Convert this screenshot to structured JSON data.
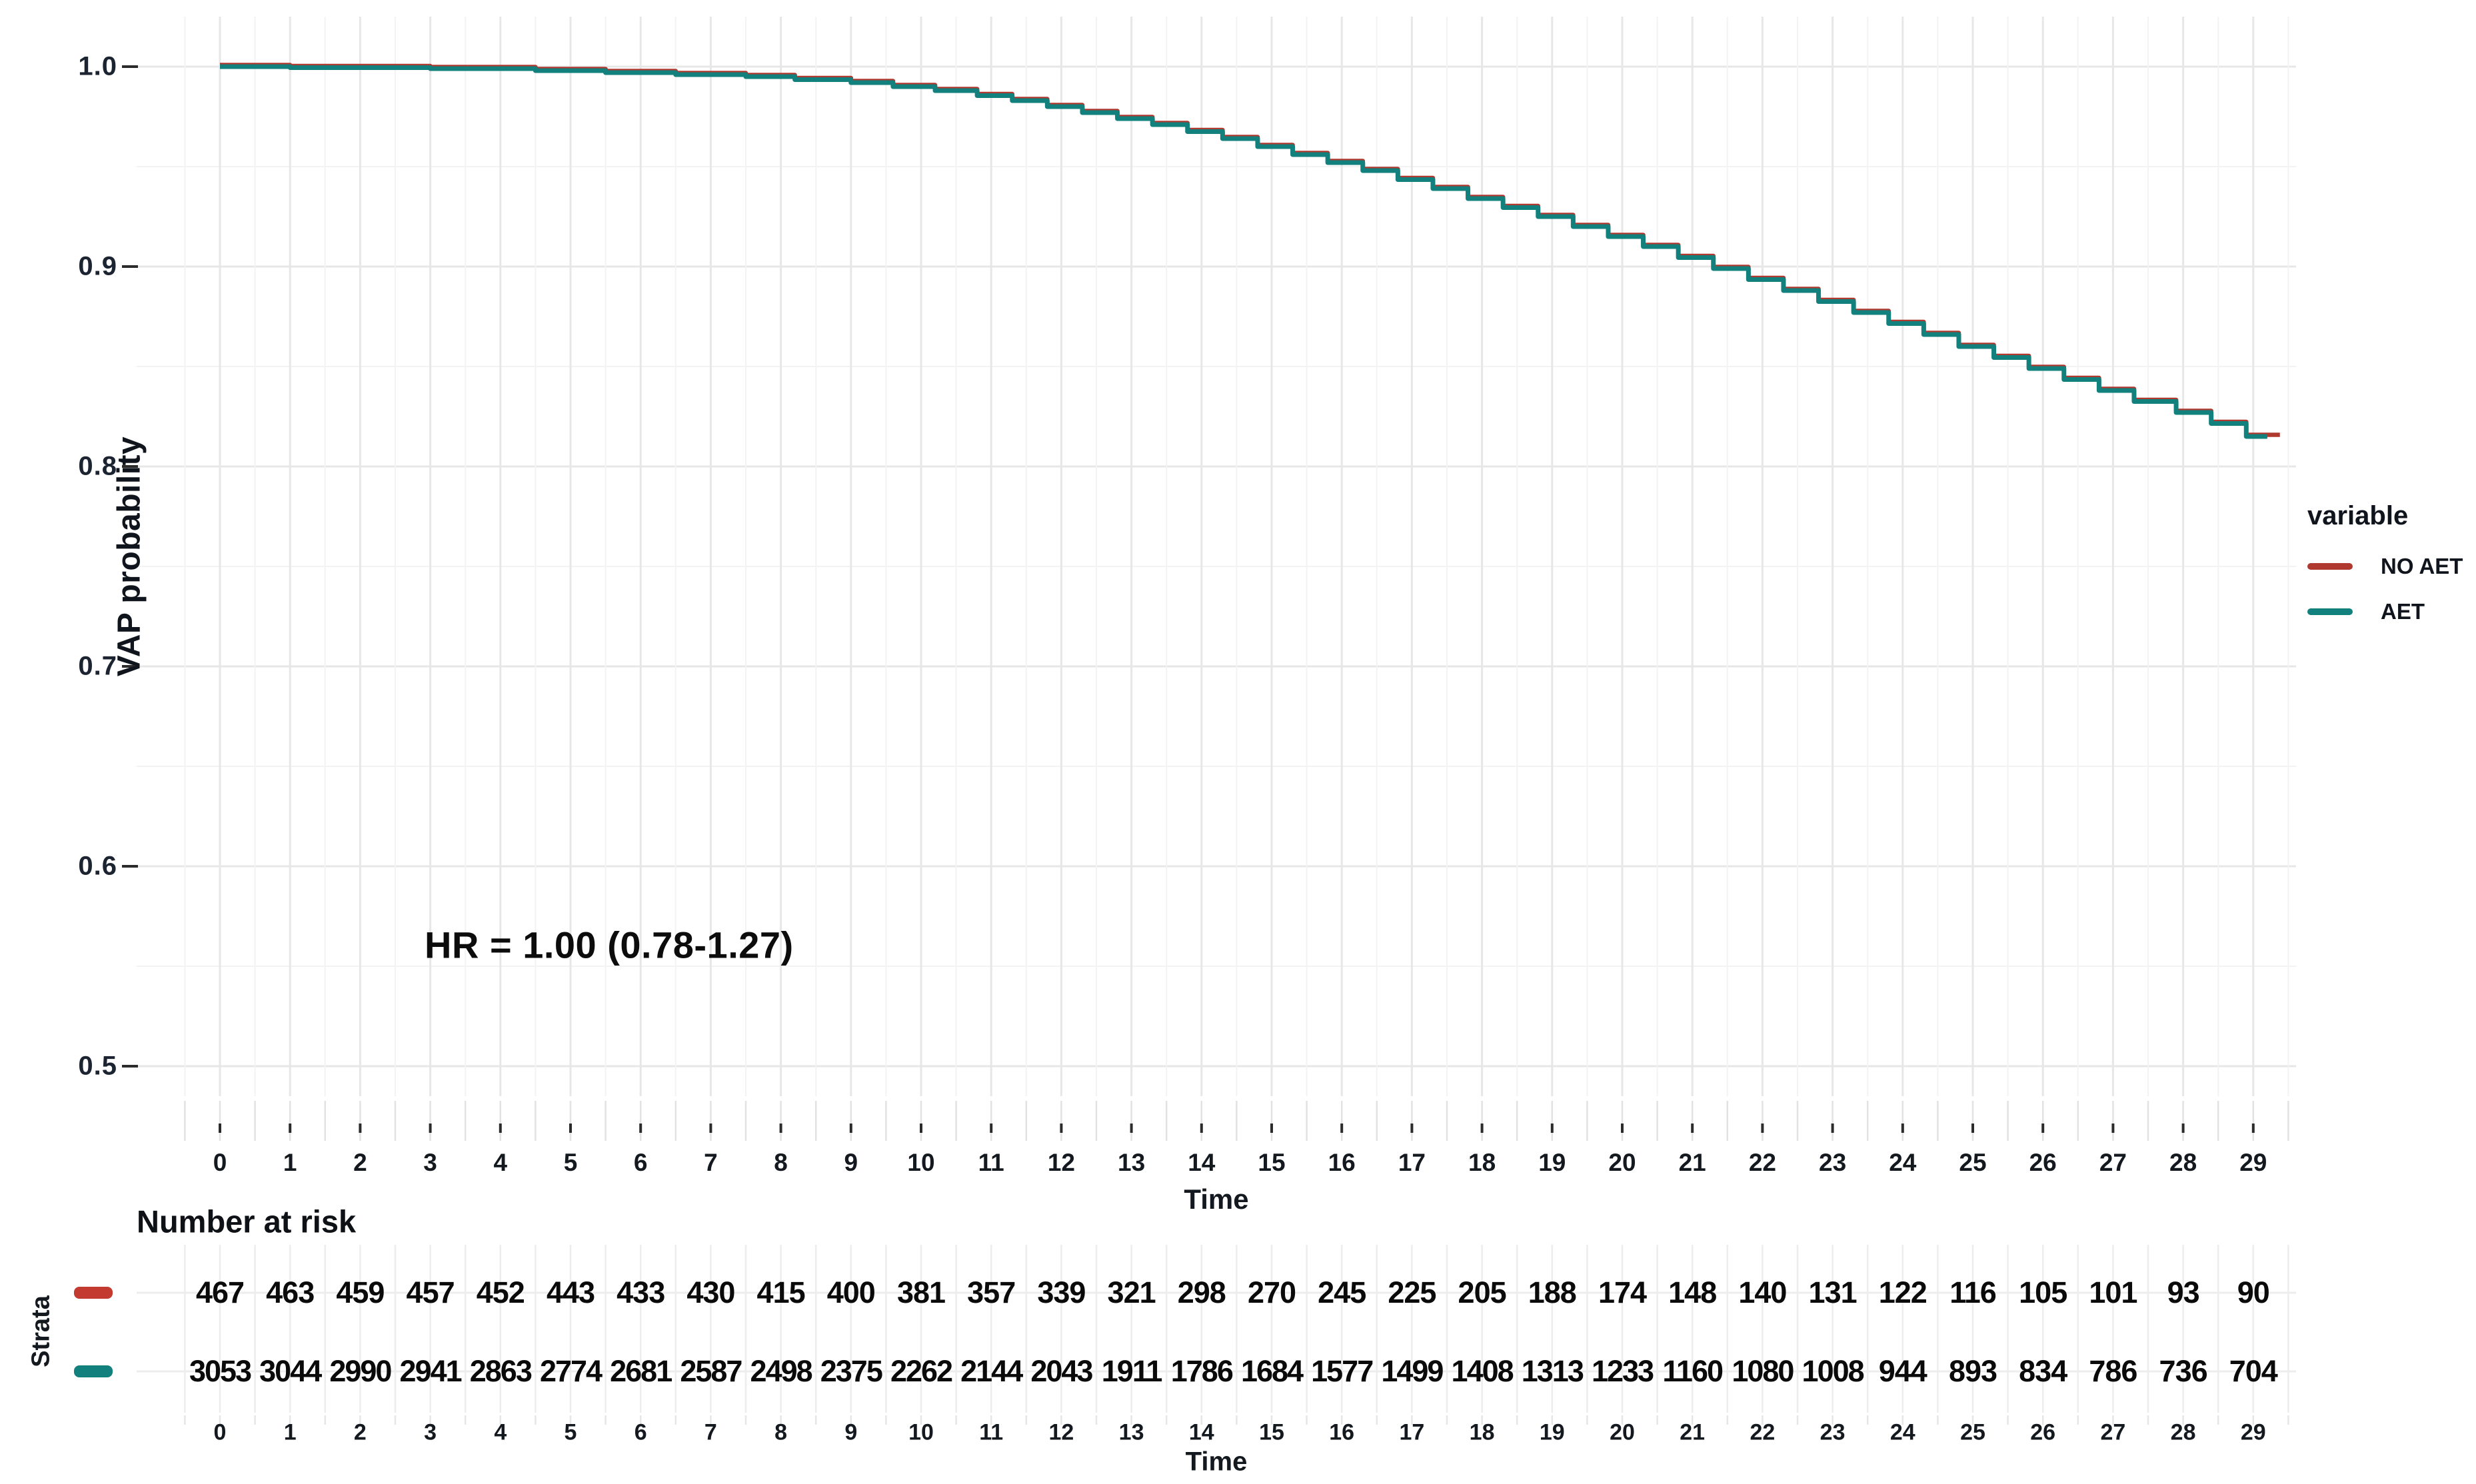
{
  "colors": {
    "aet_teal": "#12807D",
    "no_aet_red": "#B0392F",
    "strata_red": "#C23A30",
    "grid_major": "#e7e7e7",
    "grid_minor": "#f3f3f3",
    "risk_grid": "#ededed",
    "tick_dark": "#2b2b2b",
    "text_dark": "#10151d"
  },
  "chart_data": {
    "type": "line",
    "subtype": "kaplan-meier-step",
    "title": "",
    "xlabel": "Time",
    "ylabel": "VAP probability",
    "annotation": "HR = 1.00 (0.78-1.27)",
    "annotation_xy": [
      4.9,
      0.565
    ],
    "xlim": [
      -1.2,
      30.6
    ],
    "ylim": [
      0.48,
      1.02
    ],
    "grid": "major+minor",
    "yticks": [
      "1.0",
      "0.9",
      "0.8",
      "0.7",
      "0.6",
      "0.5"
    ],
    "ytick_values": [
      1.0,
      0.9,
      0.8,
      0.7,
      0.6,
      0.5
    ],
    "xticks": [
      0,
      1,
      2,
      3,
      4,
      5,
      6,
      7,
      8,
      9,
      10,
      11,
      12,
      13,
      14,
      15,
      16,
      17,
      18,
      19,
      20,
      21,
      22,
      23,
      24,
      25,
      26,
      27,
      28,
      29
    ],
    "legend": {
      "title": "variable",
      "position": "right",
      "entries": [
        {
          "label": "NO AET",
          "color": "#B0392F"
        },
        {
          "label": "AET",
          "color": "#12807D"
        }
      ]
    },
    "series": [
      {
        "name": "NO AET",
        "color": "#B0392F",
        "end_t": 29.38,
        "points": [
          [
            0,
            1.0
          ],
          [
            1,
            0.9995
          ],
          [
            3,
            0.999
          ],
          [
            4.5,
            0.998
          ],
          [
            5.5,
            0.997
          ],
          [
            6.5,
            0.996
          ],
          [
            7.5,
            0.995
          ],
          [
            8.2,
            0.9935
          ],
          [
            9,
            0.992
          ],
          [
            9.6,
            0.99
          ],
          [
            10.2,
            0.988
          ],
          [
            10.8,
            0.9855
          ],
          [
            11.3,
            0.983
          ],
          [
            11.8,
            0.98
          ],
          [
            12.3,
            0.977
          ],
          [
            12.8,
            0.974
          ],
          [
            13.3,
            0.971
          ],
          [
            13.8,
            0.9675
          ],
          [
            14.3,
            0.964
          ],
          [
            14.8,
            0.96
          ],
          [
            15.3,
            0.956
          ],
          [
            15.8,
            0.952
          ],
          [
            16.3,
            0.948
          ],
          [
            16.8,
            0.9435
          ],
          [
            17.3,
            0.939
          ],
          [
            17.8,
            0.934
          ],
          [
            18.3,
            0.9295
          ],
          [
            18.8,
            0.925
          ],
          [
            19.3,
            0.92
          ],
          [
            19.8,
            0.915
          ],
          [
            20.3,
            0.91
          ],
          [
            20.8,
            0.9045
          ],
          [
            21.3,
            0.899
          ],
          [
            21.8,
            0.8935
          ],
          [
            22.3,
            0.888
          ],
          [
            22.8,
            0.8825
          ],
          [
            23.3,
            0.877
          ],
          [
            23.8,
            0.8715
          ],
          [
            24.3,
            0.866
          ],
          [
            24.8,
            0.86
          ],
          [
            25.3,
            0.8545
          ],
          [
            25.8,
            0.849
          ],
          [
            26.3,
            0.8435
          ],
          [
            26.8,
            0.838
          ],
          [
            27.3,
            0.8325
          ],
          [
            27.9,
            0.827
          ],
          [
            28.4,
            0.8215
          ],
          [
            28.9,
            0.815
          ]
        ]
      },
      {
        "name": "AET",
        "color": "#12807D",
        "end_t": 29.2,
        "points": [
          [
            0,
            1.0
          ],
          [
            1,
            0.9995
          ],
          [
            3,
            0.999
          ],
          [
            4.5,
            0.998
          ],
          [
            5.5,
            0.997
          ],
          [
            6.5,
            0.996
          ],
          [
            7.5,
            0.995
          ],
          [
            8.2,
            0.9935
          ],
          [
            9,
            0.992
          ],
          [
            9.6,
            0.99
          ],
          [
            10.2,
            0.988
          ],
          [
            10.8,
            0.9855
          ],
          [
            11.3,
            0.983
          ],
          [
            11.8,
            0.98
          ],
          [
            12.3,
            0.977
          ],
          [
            12.8,
            0.974
          ],
          [
            13.3,
            0.971
          ],
          [
            13.8,
            0.9675
          ],
          [
            14.3,
            0.964
          ],
          [
            14.8,
            0.96
          ],
          [
            15.3,
            0.956
          ],
          [
            15.8,
            0.952
          ],
          [
            16.3,
            0.948
          ],
          [
            16.8,
            0.9435
          ],
          [
            17.3,
            0.939
          ],
          [
            17.8,
            0.934
          ],
          [
            18.3,
            0.9295
          ],
          [
            18.8,
            0.925
          ],
          [
            19.3,
            0.92
          ],
          [
            19.8,
            0.915
          ],
          [
            20.3,
            0.91
          ],
          [
            20.8,
            0.9045
          ],
          [
            21.3,
            0.899
          ],
          [
            21.8,
            0.8935
          ],
          [
            22.3,
            0.888
          ],
          [
            22.8,
            0.8825
          ],
          [
            23.3,
            0.877
          ],
          [
            23.8,
            0.8715
          ],
          [
            24.3,
            0.866
          ],
          [
            24.8,
            0.86
          ],
          [
            25.3,
            0.8545
          ],
          [
            25.8,
            0.849
          ],
          [
            26.3,
            0.8435
          ],
          [
            26.8,
            0.838
          ],
          [
            27.3,
            0.8325
          ],
          [
            27.9,
            0.827
          ],
          [
            28.4,
            0.8215
          ],
          [
            28.9,
            0.815
          ]
        ]
      }
    ]
  },
  "risk_table": {
    "title": "Number at risk",
    "ylabel": "Strata",
    "xlabel": "Time",
    "times": [
      0,
      1,
      2,
      3,
      4,
      5,
      6,
      7,
      8,
      9,
      10,
      11,
      12,
      13,
      14,
      15,
      16,
      17,
      18,
      19,
      20,
      21,
      22,
      23,
      24,
      25,
      26,
      27,
      28,
      29
    ],
    "rows": [
      {
        "name": "NO AET",
        "color": "#C23A30",
        "values": [
          467,
          463,
          459,
          457,
          452,
          443,
          433,
          430,
          415,
          400,
          381,
          357,
          339,
          321,
          298,
          270,
          245,
          225,
          205,
          188,
          174,
          148,
          140,
          131,
          122,
          116,
          105,
          101,
          93,
          90
        ]
      },
      {
        "name": "AET",
        "color": "#12807D",
        "values": [
          3053,
          3044,
          2990,
          2941,
          2863,
          2774,
          2681,
          2587,
          2498,
          2375,
          2262,
          2144,
          2043,
          1911,
          1786,
          1684,
          1577,
          1499,
          1408,
          1313,
          1233,
          1160,
          1080,
          1008,
          944,
          893,
          834,
          786,
          736,
          704
        ]
      }
    ]
  }
}
